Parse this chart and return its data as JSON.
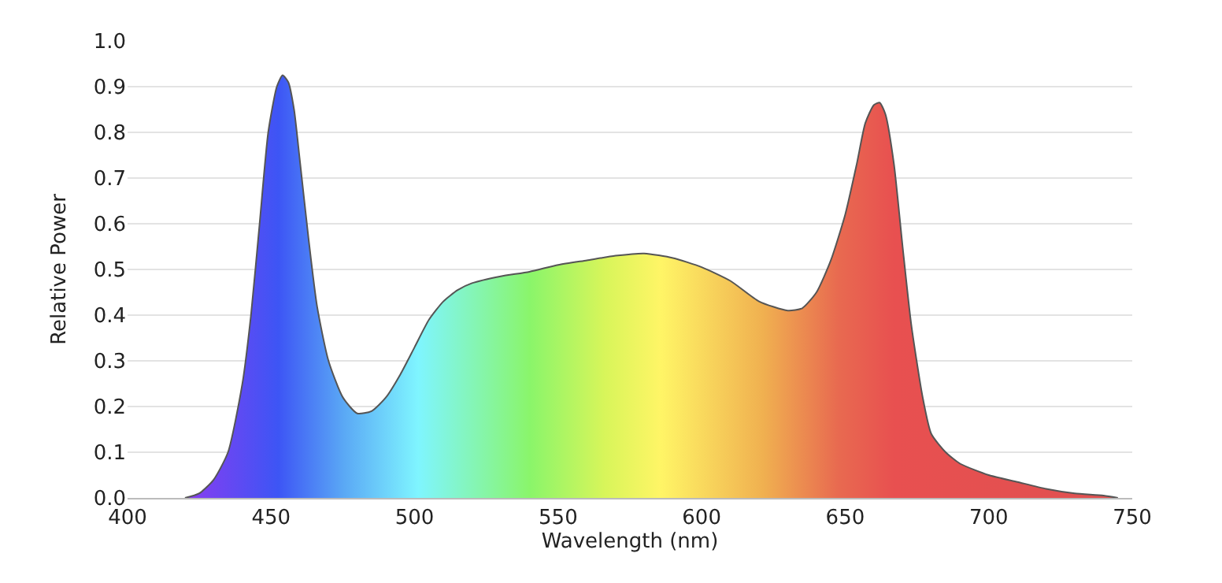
{
  "chart_data": {
    "type": "area",
    "xlabel": "Wavelength (nm)",
    "ylabel": "Relative Power",
    "x": [
      420,
      425,
      430,
      435,
      440,
      443,
      446,
      449,
      452,
      454,
      456,
      458,
      460,
      463,
      466,
      470,
      475,
      480,
      485,
      490,
      495,
      500,
      505,
      510,
      515,
      520,
      530,
      540,
      550,
      560,
      570,
      580,
      590,
      600,
      610,
      620,
      630,
      635,
      640,
      645,
      650,
      654,
      657,
      660,
      662,
      664,
      667,
      670,
      673,
      677,
      680,
      685,
      690,
      700,
      710,
      720,
      730,
      740,
      745
    ],
    "series": [
      {
        "color": "#555555",
        "values": [
          0,
          0.01,
          0.04,
          0.1,
          0.25,
          0.4,
          0.6,
          0.8,
          0.9,
          0.925,
          0.91,
          0.85,
          0.74,
          0.57,
          0.42,
          0.3,
          0.22,
          0.185,
          0.19,
          0.22,
          0.27,
          0.33,
          0.39,
          0.43,
          0.455,
          0.47,
          0.485,
          0.495,
          0.51,
          0.52,
          0.53,
          0.535,
          0.525,
          0.505,
          0.475,
          0.43,
          0.41,
          0.415,
          0.45,
          0.52,
          0.62,
          0.73,
          0.82,
          0.86,
          0.865,
          0.84,
          0.73,
          0.55,
          0.38,
          0.22,
          0.14,
          0.1,
          0.075,
          0.05,
          0.035,
          0.02,
          0.01,
          0.005,
          0
        ]
      }
    ],
    "xlim": [
      400,
      750
    ],
    "xticks": [
      400,
      450,
      500,
      550,
      600,
      650,
      700,
      750
    ],
    "ylim": [
      0,
      1
    ],
    "yticks": [
      {
        "value": 0,
        "label": "0.0"
      },
      0.1,
      0.2,
      0.3,
      0.4,
      0.5,
      0.6,
      0.7,
      0.8,
      0.9,
      {
        "value": 1,
        "label": "1.0"
      }
    ],
    "grid": "y"
  }
}
